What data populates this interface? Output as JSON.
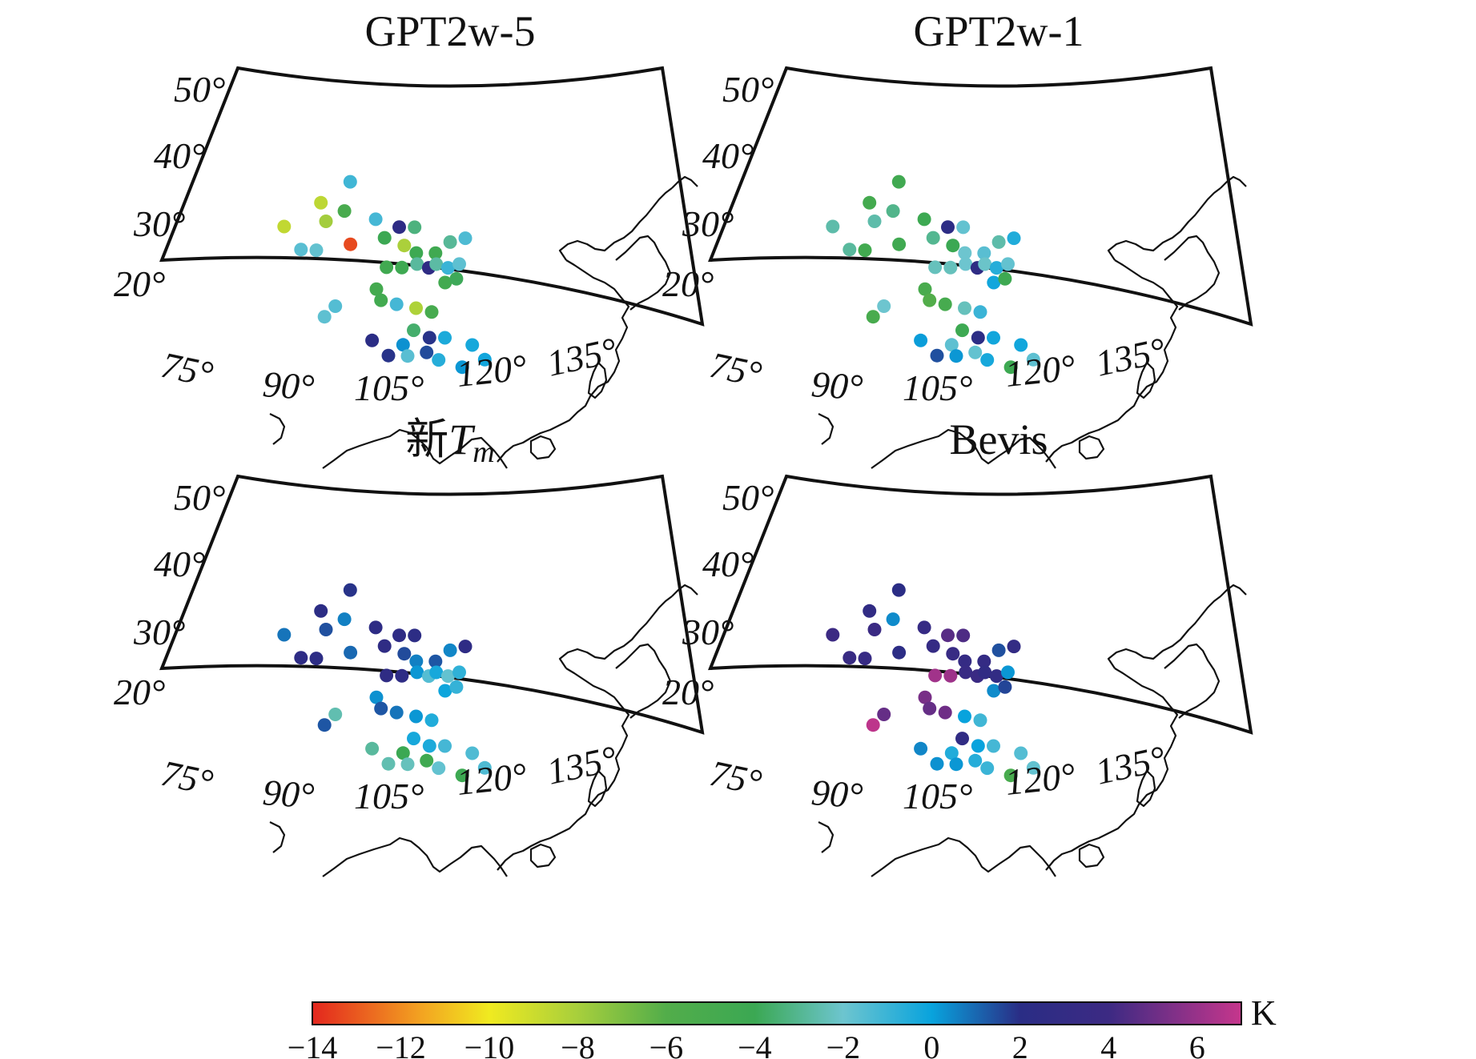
{
  "colorbar": {
    "unit": "K",
    "min": -14,
    "max": 7,
    "ticks": [
      -14,
      -12,
      -10,
      -8,
      -6,
      -4,
      -2,
      0,
      2,
      4,
      6
    ],
    "tick_labels": [
      "−14",
      "−12",
      "−10",
      "−8",
      "−6",
      "−4",
      "−2",
      "0",
      "2",
      "4",
      "6"
    ],
    "stops": [
      {
        "v": -14,
        "color": "#e3261e"
      },
      {
        "v": -11.5,
        "color": "#f3a521"
      },
      {
        "v": -10,
        "color": "#f0ea20"
      },
      {
        "v": -8,
        "color": "#a7cf3c"
      },
      {
        "v": -6,
        "color": "#52ad4a"
      },
      {
        "v": -4,
        "color": "#3ba853"
      },
      {
        "v": -2,
        "color": "#6dc5cf"
      },
      {
        "v": 0,
        "color": "#08a3dd"
      },
      {
        "v": 2,
        "color": "#2a2d85"
      },
      {
        "v": 4,
        "color": "#3c2a83"
      },
      {
        "v": 7,
        "color": "#c6368c"
      }
    ]
  },
  "axes": {
    "lat_labels": [
      "50°",
      "40°",
      "30°",
      "20°"
    ],
    "lon_labels": [
      "75°",
      "90°",
      "105°",
      "120°",
      "135°"
    ]
  },
  "chart_data": [
    {
      "type": "scatter",
      "title": "GPT2w-5",
      "points": [
        {
          "lon": 80,
          "lat": 37,
          "v": -8.7
        },
        {
          "lon": 82,
          "lat": 34,
          "v": -1.6
        },
        {
          "lon": 84,
          "lat": 34,
          "v": -1.8
        },
        {
          "lon": 85,
          "lat": 40.5,
          "v": -8.6
        },
        {
          "lon": 85.5,
          "lat": 38,
          "v": -7.9
        },
        {
          "lon": 88.5,
          "lat": 35,
          "v": -13.3
        },
        {
          "lon": 88,
          "lat": 39.5,
          "v": -5.2
        },
        {
          "lon": 89,
          "lat": 43.5,
          "v": -1.1
        },
        {
          "lon": 92,
          "lat": 38.5,
          "v": -1.2
        },
        {
          "lon": 95,
          "lat": 37.5,
          "v": 2.4
        },
        {
          "lon": 97,
          "lat": 37.5,
          "v": -3.3
        },
        {
          "lon": 93,
          "lat": 36,
          "v": -4.1
        },
        {
          "lon": 95.5,
          "lat": 35,
          "v": -8.1
        },
        {
          "lon": 97,
          "lat": 34,
          "v": -4.2
        },
        {
          "lon": 99.5,
          "lat": 34,
          "v": -4.4
        },
        {
          "lon": 101.5,
          "lat": 35.5,
          "v": -2.9
        },
        {
          "lon": 103.5,
          "lat": 36,
          "v": -1.4
        },
        {
          "lon": 93,
          "lat": 32,
          "v": -4.5
        },
        {
          "lon": 95,
          "lat": 32,
          "v": -4.3
        },
        {
          "lon": 97,
          "lat": 32.5,
          "v": -2.8
        },
        {
          "lon": 98.5,
          "lat": 32,
          "v": 2.6
        },
        {
          "lon": 99.5,
          "lat": 32.5,
          "v": -2.7
        },
        {
          "lon": 101,
          "lat": 32,
          "v": -1.0
        },
        {
          "lon": 102.5,
          "lat": 32.5,
          "v": -1.7
        },
        {
          "lon": 100.5,
          "lat": 30,
          "v": -4.6
        },
        {
          "lon": 102,
          "lat": 30.5,
          "v": -3.9
        },
        {
          "lon": 91.5,
          "lat": 29,
          "v": -4.8
        },
        {
          "lon": 92,
          "lat": 27.5,
          "v": -4.6
        },
        {
          "lon": 94,
          "lat": 27,
          "v": -1.2
        },
        {
          "lon": 96.5,
          "lat": 26.5,
          "v": -8.2
        },
        {
          "lon": 98.5,
          "lat": 26,
          "v": -5.0
        },
        {
          "lon": 86,
          "lat": 26.5,
          "v": -1.5
        },
        {
          "lon": 84.5,
          "lat": 25,
          "v": -1.7
        },
        {
          "lon": 96,
          "lat": 23.5,
          "v": -3.6
        },
        {
          "lon": 98,
          "lat": 22.5,
          "v": 1.9
        },
        {
          "lon": 100,
          "lat": 22.5,
          "v": -0.4
        },
        {
          "lon": 90.5,
          "lat": 22,
          "v": 2.1
        },
        {
          "lon": 94.5,
          "lat": 21.5,
          "v": 0.3
        },
        {
          "lon": 97.5,
          "lat": 20.5,
          "v": 1.5
        },
        {
          "lon": 103.5,
          "lat": 21.5,
          "v": -0.3
        },
        {
          "lon": 92.5,
          "lat": 20,
          "v": 1.9
        },
        {
          "lon": 95,
          "lat": 20,
          "v": -1.6
        },
        {
          "lon": 99,
          "lat": 19.5,
          "v": -0.6
        },
        {
          "lon": 102,
          "lat": 18.5,
          "v": 0.2
        },
        {
          "lon": 105,
          "lat": 19.5,
          "v": -0.2
        }
      ]
    },
    {
      "type": "scatter",
      "title": "GPT2w-1",
      "points": [
        {
          "lon": 80,
          "lat": 37,
          "v": -2.6
        },
        {
          "lon": 82,
          "lat": 34,
          "v": -2.8
        },
        {
          "lon": 84,
          "lat": 34,
          "v": -4.6
        },
        {
          "lon": 85,
          "lat": 40.5,
          "v": -4.8
        },
        {
          "lon": 85.5,
          "lat": 38,
          "v": -2.6
        },
        {
          "lon": 88.5,
          "lat": 35,
          "v": -4.4
        },
        {
          "lon": 88,
          "lat": 39.5,
          "v": -3.1
        },
        {
          "lon": 89,
          "lat": 43.5,
          "v": -4.5
        },
        {
          "lon": 92,
          "lat": 38.5,
          "v": -4.2
        },
        {
          "lon": 95,
          "lat": 37.5,
          "v": 2.3
        },
        {
          "lon": 97,
          "lat": 37.5,
          "v": -1.8
        },
        {
          "lon": 93,
          "lat": 36,
          "v": -3.0
        },
        {
          "lon": 95.5,
          "lat": 35,
          "v": -4.0
        },
        {
          "lon": 97,
          "lat": 34,
          "v": -2.0
        },
        {
          "lon": 99.5,
          "lat": 34,
          "v": -1.6
        },
        {
          "lon": 101.5,
          "lat": 35.5,
          "v": -2.6
        },
        {
          "lon": 103.5,
          "lat": 36,
          "v": -0.5
        },
        {
          "lon": 93,
          "lat": 32,
          "v": -2.3
        },
        {
          "lon": 95,
          "lat": 32,
          "v": -2.3
        },
        {
          "lon": 97,
          "lat": 32.5,
          "v": -2.0
        },
        {
          "lon": 98.5,
          "lat": 32,
          "v": 2.6
        },
        {
          "lon": 99.5,
          "lat": 32.5,
          "v": -2.1
        },
        {
          "lon": 101,
          "lat": 32,
          "v": -0.6
        },
        {
          "lon": 102.5,
          "lat": 32.5,
          "v": -1.8
        },
        {
          "lon": 100.5,
          "lat": 30,
          "v": -0.2
        },
        {
          "lon": 102,
          "lat": 30.5,
          "v": -4.3
        },
        {
          "lon": 91.5,
          "lat": 29,
          "v": -5.2
        },
        {
          "lon": 92,
          "lat": 27.5,
          "v": -6.0
        },
        {
          "lon": 94,
          "lat": 27,
          "v": -5.0
        },
        {
          "lon": 96.5,
          "lat": 26.5,
          "v": -2.3
        },
        {
          "lon": 98.5,
          "lat": 26,
          "v": -1.0
        },
        {
          "lon": 86,
          "lat": 26.5,
          "v": -2.0
        },
        {
          "lon": 84.5,
          "lat": 25,
          "v": -5.1
        },
        {
          "lon": 96,
          "lat": 23.5,
          "v": -4.2
        },
        {
          "lon": 98,
          "lat": 22.5,
          "v": 2.2
        },
        {
          "lon": 100,
          "lat": 22.5,
          "v": -0.2
        },
        {
          "lon": 90.5,
          "lat": 22,
          "v": 0.1
        },
        {
          "lon": 94.5,
          "lat": 21.5,
          "v": -1.7
        },
        {
          "lon": 97.5,
          "lat": 20.5,
          "v": -1.8
        },
        {
          "lon": 103.5,
          "lat": 21.5,
          "v": -0.2
        },
        {
          "lon": 92.5,
          "lat": 20,
          "v": 1.4
        },
        {
          "lon": 95,
          "lat": 20,
          "v": 0.2
        },
        {
          "lon": 99,
          "lat": 19.5,
          "v": -0.3
        },
        {
          "lon": 102,
          "lat": 18.5,
          "v": -4.2
        },
        {
          "lon": 105,
          "lat": 19.5,
          "v": -1.7
        }
      ]
    },
    {
      "type": "scatter",
      "title": "新",
      "title_var": "T",
      "title_sub": "m",
      "points": [
        {
          "lon": 80,
          "lat": 37,
          "v": 0.8
        },
        {
          "lon": 82,
          "lat": 34,
          "v": 2.4
        },
        {
          "lon": 84,
          "lat": 34,
          "v": 2.3
        },
        {
          "lon": 85,
          "lat": 40.5,
          "v": 2.2
        },
        {
          "lon": 85.5,
          "lat": 38,
          "v": 1.4
        },
        {
          "lon": 88.5,
          "lat": 35,
          "v": 1.0
        },
        {
          "lon": 88,
          "lat": 39.5,
          "v": 0.6
        },
        {
          "lon": 89,
          "lat": 43.5,
          "v": 1.9
        },
        {
          "lon": 92,
          "lat": 38.5,
          "v": 2.4
        },
        {
          "lon": 95,
          "lat": 37.5,
          "v": 2.5
        },
        {
          "lon": 97,
          "lat": 37.5,
          "v": 2.3
        },
        {
          "lon": 93,
          "lat": 36,
          "v": 2.6
        },
        {
          "lon": 95.5,
          "lat": 35,
          "v": 1.5
        },
        {
          "lon": 97,
          "lat": 34,
          "v": 0.6
        },
        {
          "lon": 99.5,
          "lat": 34,
          "v": 1.3
        },
        {
          "lon": 101.5,
          "lat": 35.5,
          "v": 0.5
        },
        {
          "lon": 103.5,
          "lat": 36,
          "v": 2.5
        },
        {
          "lon": 93,
          "lat": 32,
          "v": 2.6
        },
        {
          "lon": 95,
          "lat": 32,
          "v": 2.4
        },
        {
          "lon": 97,
          "lat": 32.5,
          "v": 0.2
        },
        {
          "lon": 98.5,
          "lat": 32,
          "v": -1.5
        },
        {
          "lon": 99.5,
          "lat": 32.5,
          "v": -0.3
        },
        {
          "lon": 101,
          "lat": 32,
          "v": -1.8
        },
        {
          "lon": 102.5,
          "lat": 32.5,
          "v": -0.8
        },
        {
          "lon": 100.5,
          "lat": 30,
          "v": -0.1
        },
        {
          "lon": 102,
          "lat": 30.5,
          "v": -0.9
        },
        {
          "lon": 91.5,
          "lat": 29,
          "v": 0.3
        },
        {
          "lon": 92,
          "lat": 27.5,
          "v": 1.3
        },
        {
          "lon": 94,
          "lat": 27,
          "v": 0.8
        },
        {
          "lon": 96.5,
          "lat": 26.5,
          "v": 0.2
        },
        {
          "lon": 98.5,
          "lat": 26,
          "v": -0.5
        },
        {
          "lon": 86,
          "lat": 26.5,
          "v": -2.5
        },
        {
          "lon": 84.5,
          "lat": 25,
          "v": 1.3
        },
        {
          "lon": 96,
          "lat": 23.5,
          "v": -0.3
        },
        {
          "lon": 98,
          "lat": 22.5,
          "v": -0.4
        },
        {
          "lon": 100,
          "lat": 22.5,
          "v": -1.2
        },
        {
          "lon": 90.5,
          "lat": 22,
          "v": -2.8
        },
        {
          "lon": 94.5,
          "lat": 21.5,
          "v": -4.0
        },
        {
          "lon": 97.5,
          "lat": 20.5,
          "v": -4.4
        },
        {
          "lon": 103.5,
          "lat": 21.5,
          "v": -1.4
        },
        {
          "lon": 92.5,
          "lat": 20,
          "v": -2.5
        },
        {
          "lon": 95,
          "lat": 20,
          "v": -2.3
        },
        {
          "lon": 99,
          "lat": 19.5,
          "v": -1.8
        },
        {
          "lon": 102,
          "lat": 18.5,
          "v": -4.2
        },
        {
          "lon": 105,
          "lat": 19.5,
          "v": -1.4
        }
      ]
    },
    {
      "type": "scatter",
      "title": "Bevis",
      "points": [
        {
          "lon": 80,
          "lat": 37,
          "v": 4.0
        },
        {
          "lon": 82,
          "lat": 34,
          "v": 3.6
        },
        {
          "lon": 84,
          "lat": 34,
          "v": 3.4
        },
        {
          "lon": 85,
          "lat": 40.5,
          "v": 2.8
        },
        {
          "lon": 85.5,
          "lat": 38,
          "v": 3.8
        },
        {
          "lon": 88.5,
          "lat": 35,
          "v": 2.2
        },
        {
          "lon": 88,
          "lat": 39.5,
          "v": 0.4
        },
        {
          "lon": 89,
          "lat": 43.5,
          "v": 2.1
        },
        {
          "lon": 92,
          "lat": 38.5,
          "v": 3.3
        },
        {
          "lon": 95,
          "lat": 37.5,
          "v": 4.6
        },
        {
          "lon": 97,
          "lat": 37.5,
          "v": 4.4
        },
        {
          "lon": 93,
          "lat": 36,
          "v": 3.2
        },
        {
          "lon": 95.5,
          "lat": 35,
          "v": 3.5
        },
        {
          "lon": 97,
          "lat": 34,
          "v": 3.2
        },
        {
          "lon": 99.5,
          "lat": 34,
          "v": 3.1
        },
        {
          "lon": 101.5,
          "lat": 35.5,
          "v": 1.4
        },
        {
          "lon": 103.5,
          "lat": 36,
          "v": 3.0
        },
        {
          "lon": 93,
          "lat": 32,
          "v": 6.2
        },
        {
          "lon": 95,
          "lat": 32,
          "v": 6.1
        },
        {
          "lon": 97,
          "lat": 32.5,
          "v": 3.5
        },
        {
          "lon": 98.5,
          "lat": 32,
          "v": 3.8
        },
        {
          "lon": 99.5,
          "lat": 32.5,
          "v": 2.8
        },
        {
          "lon": 101,
          "lat": 32,
          "v": 2.9
        },
        {
          "lon": 102.5,
          "lat": 32.5,
          "v": 0.2
        },
        {
          "lon": 100.5,
          "lat": 30,
          "v": 0.4
        },
        {
          "lon": 102,
          "lat": 30.5,
          "v": 1.6
        },
        {
          "lon": 91.5,
          "lat": 29,
          "v": 5.3
        },
        {
          "lon": 92,
          "lat": 27.5,
          "v": 4.9
        },
        {
          "lon": 94,
          "lat": 27,
          "v": 5.1
        },
        {
          "lon": 96.5,
          "lat": 26.5,
          "v": 0.0
        },
        {
          "lon": 98.5,
          "lat": 26,
          "v": -1.1
        },
        {
          "lon": 86,
          "lat": 26.5,
          "v": 4.9
        },
        {
          "lon": 84.5,
          "lat": 25,
          "v": 6.8
        },
        {
          "lon": 96,
          "lat": 23.5,
          "v": 2.8
        },
        {
          "lon": 98,
          "lat": 22.5,
          "v": 0.0
        },
        {
          "lon": 100,
          "lat": 22.5,
          "v": -1.2
        },
        {
          "lon": 90.5,
          "lat": 22,
          "v": 0.5
        },
        {
          "lon": 94.5,
          "lat": 21.5,
          "v": -0.5
        },
        {
          "lon": 97.5,
          "lat": 20.5,
          "v": -0.6
        },
        {
          "lon": 103.5,
          "lat": 21.5,
          "v": -1.5
        },
        {
          "lon": 92.5,
          "lat": 20,
          "v": 0.3
        },
        {
          "lon": 95,
          "lat": 20,
          "v": 0.2
        },
        {
          "lon": 99,
          "lat": 19.5,
          "v": -1.0
        },
        {
          "lon": 102,
          "lat": 18.5,
          "v": -5.1
        },
        {
          "lon": 105,
          "lat": 19.5,
          "v": -1.8
        }
      ]
    }
  ]
}
